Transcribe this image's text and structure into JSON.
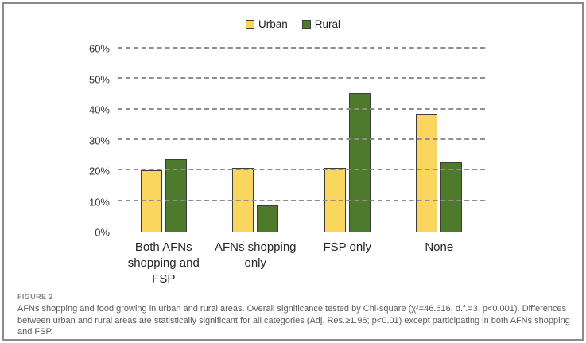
{
  "figure": {
    "label": "FIGURE 2",
    "caption": "AFNs shopping and food growing in urban and rural areas. Overall significance tested by Chi-square (χ²=46.616, d.f.=3, p<0.001). Differences between urban and rural areas are statistically significant for all categories (Adj. Res.≥1.96; p<0.01) except participating in both AFNs shopping and FSP."
  },
  "chart_data": {
    "type": "bar",
    "title": "",
    "xlabel": "",
    "ylabel": "",
    "categories": [
      "Both AFNs\nshopping and\nFSP",
      "AFNs shopping\nonly",
      "FSP only",
      "None"
    ],
    "series": [
      {
        "name": "Urban",
        "color": "#FAD65E",
        "values": [
          20.0,
          21.0,
          20.8,
          38.7
        ]
      },
      {
        "name": "Rural",
        "color": "#4E7A2B",
        "values": [
          23.8,
          8.7,
          45.3,
          22.7
        ]
      }
    ],
    "ylim": [
      0,
      60
    ],
    "ytick_step": 10,
    "ytick_labels": [
      "0%",
      "10%",
      "20%",
      "30%",
      "40%",
      "50%",
      "60%"
    ],
    "grid": "horizontal-dashed",
    "legend_position": "top-center",
    "bar_border_color": "#3d3d3d",
    "gridline_color": "#8f8f8f",
    "axis_line_color": "#c9c9c9"
  }
}
